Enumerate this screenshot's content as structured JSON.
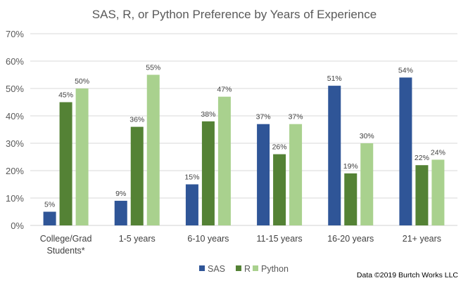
{
  "chart_data": {
    "type": "bar",
    "title": "SAS, R, or Python Preference by Years of Experience",
    "xlabel": "",
    "ylabel": "",
    "ylim": [
      0,
      70
    ],
    "yticks": [
      0,
      10,
      20,
      30,
      40,
      50,
      60,
      70
    ],
    "ytick_labels": [
      "0%",
      "10%",
      "20%",
      "30%",
      "40%",
      "50%",
      "60%",
      "70%"
    ],
    "grid": true,
    "legend_position": "bottom-center",
    "categories": [
      [
        "College/Grad",
        "Students*"
      ],
      [
        "1-5 years"
      ],
      [
        "6-10 years"
      ],
      [
        "11-15 years"
      ],
      [
        "16-20 years"
      ],
      [
        "21+ years"
      ]
    ],
    "series": [
      {
        "name": "SAS",
        "color": "#2f5597",
        "values": [
          5,
          9,
          15,
          37,
          51,
          54
        ],
        "labels": [
          "5%",
          "9%",
          "15%",
          "37%",
          "51%",
          "54%"
        ]
      },
      {
        "name": "R",
        "color": "#548235",
        "values": [
          45,
          36,
          38,
          26,
          19,
          22
        ],
        "labels": [
          "45%",
          "36%",
          "38%",
          "26%",
          "19%",
          "22%"
        ]
      },
      {
        "name": "Python",
        "color": "#a9d18e",
        "values": [
          50,
          55,
          47,
          37,
          30,
          24
        ],
        "labels": [
          "50%",
          "55%",
          "47%",
          "37%",
          "30%",
          "24%"
        ]
      }
    ],
    "annotation": "Data ©2019 Burtch Works LLC"
  }
}
